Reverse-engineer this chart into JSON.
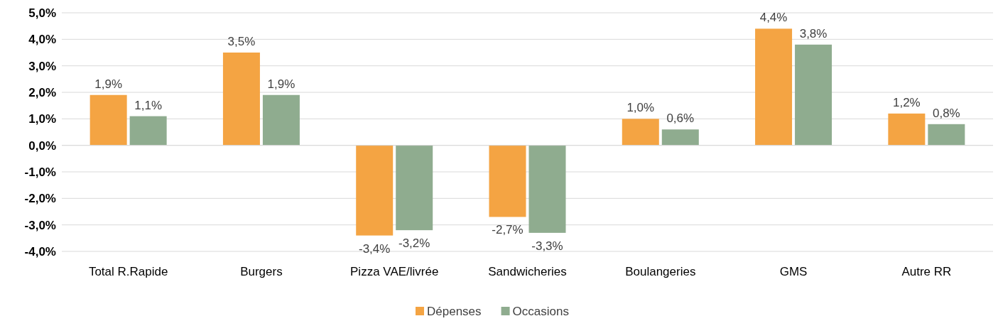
{
  "chart_data": {
    "type": "bar",
    "categories": [
      "Total R.Rapide",
      "Burgers",
      "Pizza VAE/livrée",
      "Sandwicheries",
      "Boulangeries",
      "GMS",
      "Autre RR"
    ],
    "series": [
      {
        "name": "Dépenses",
        "color": "#f4a443",
        "values": [
          1.9,
          3.5,
          -3.4,
          -2.7,
          1.0,
          4.4,
          1.2
        ],
        "value_labels": [
          "1,9%",
          "3,5%",
          "-3,4%",
          "-2,7%",
          "1,0%",
          "4,4%",
          "1,2%"
        ]
      },
      {
        "name": "Occasions",
        "color": "#8fac8f",
        "values": [
          1.1,
          1.9,
          -3.2,
          -3.3,
          0.6,
          3.8,
          0.8
        ],
        "value_labels": [
          "1,1%",
          "1,9%",
          "-3,2%",
          "-3,3%",
          "0,6%",
          "3,8%",
          "0,8%"
        ]
      }
    ],
    "ylim": [
      -4,
      5
    ],
    "yticks": [
      {
        "value": 5,
        "label": "5,0%"
      },
      {
        "value": 4,
        "label": "4,0%"
      },
      {
        "value": 3,
        "label": "3,0%"
      },
      {
        "value": 2,
        "label": "2,0%"
      },
      {
        "value": 1,
        "label": "1,0%"
      },
      {
        "value": 0,
        "label": "0,0%"
      },
      {
        "value": -1,
        "label": "-1,0%"
      },
      {
        "value": -2,
        "label": "-2,0%"
      },
      {
        "value": -3,
        "label": "-3,0%"
      },
      {
        "value": -4,
        "label": "-4,0%"
      }
    ],
    "grid": "y",
    "legend": "bottom"
  }
}
